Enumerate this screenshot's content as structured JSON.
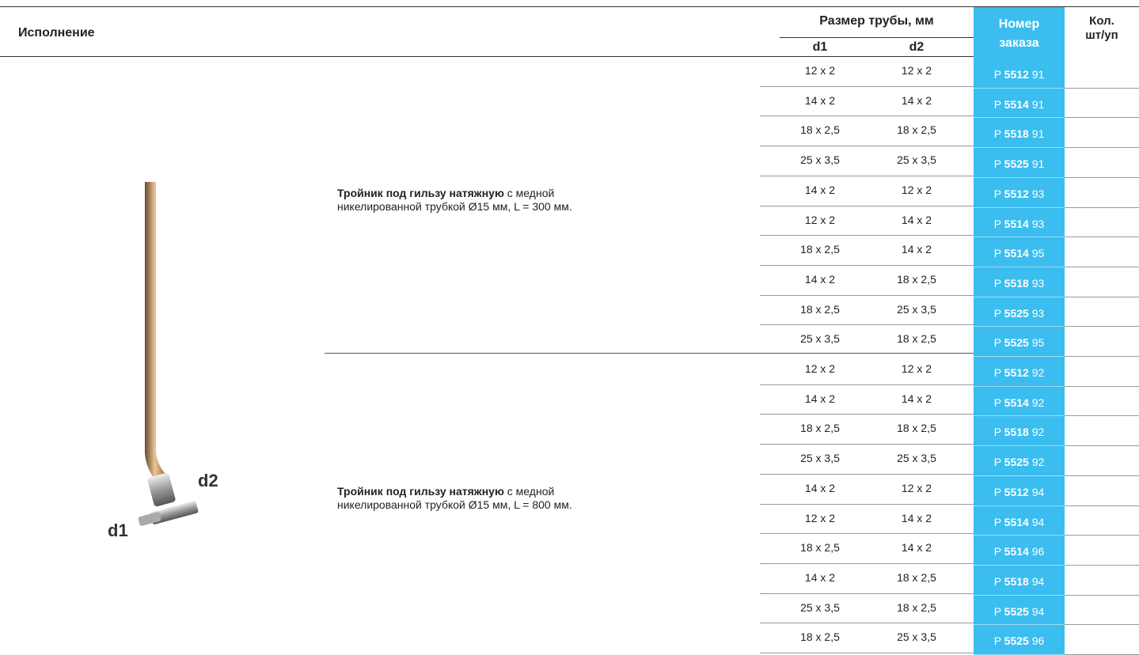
{
  "header": {
    "col_execution": "Исполнение",
    "col_size": "Размер трубы, мм",
    "col_d1": "d1",
    "col_d2": "d2",
    "col_order": [
      "Номер",
      "заказа"
    ],
    "col_qty": [
      "Кол.",
      "шт/уп"
    ]
  },
  "image": {
    "label_d1": "d1",
    "label_d2": "d2"
  },
  "groups": [
    {
      "title": "Тройник под гильзу натяжную",
      "text_line1": " с медной",
      "text_line2": "никелированной трубкой Ø15 мм, L = 300 мм.",
      "rows": [
        {
          "d1": "12 x 2",
          "d2": "12 x 2",
          "prefix": "P",
          "code": "5512",
          "suffix": "91"
        },
        {
          "d1": "14 x 2",
          "d2": "14 x 2",
          "prefix": "P",
          "code": "5514",
          "suffix": "91"
        },
        {
          "d1": "18 x 2,5",
          "d2": "18 x 2,5",
          "prefix": "P",
          "code": "5518",
          "suffix": "91"
        },
        {
          "d1": "25 x 3,5",
          "d2": "25 x 3,5",
          "prefix": "P",
          "code": "5525",
          "suffix": "91"
        },
        {
          "d1": "14 x 2",
          "d2": "12 x 2",
          "prefix": "P",
          "code": "5512",
          "suffix": "93"
        },
        {
          "d1": "12 x 2",
          "d2": "14 x 2",
          "prefix": "P",
          "code": "5514",
          "suffix": "93"
        },
        {
          "d1": "18 x 2,5",
          "d2": "14 x 2",
          "prefix": "P",
          "code": "5514",
          "suffix": "95"
        },
        {
          "d1": "14 x 2",
          "d2": "18 x 2,5",
          "prefix": "P",
          "code": "5518",
          "suffix": "93"
        },
        {
          "d1": "18 x 2,5",
          "d2": "25 x 3,5",
          "prefix": "P",
          "code": "5525",
          "suffix": "93"
        },
        {
          "d1": "25 x 3,5",
          "d2": "18 x 2,5",
          "prefix": "P",
          "code": "5525",
          "suffix": "95"
        }
      ]
    },
    {
      "title": "Тройник под гильзу натяжную",
      "text_line1": " с медной",
      "text_line2": "никелированной трубкой Ø15 мм, L = 800 мм.",
      "rows": [
        {
          "d1": "12 x 2",
          "d2": "12 x 2",
          "prefix": "P",
          "code": "5512",
          "suffix": "92"
        },
        {
          "d1": "14 x 2",
          "d2": "14 x 2",
          "prefix": "P",
          "code": "5514",
          "suffix": "92"
        },
        {
          "d1": "18 x 2,5",
          "d2": "18 x 2,5",
          "prefix": "P",
          "code": "5518",
          "suffix": "92"
        },
        {
          "d1": "25 x 3,5",
          "d2": "25 x 3,5",
          "prefix": "P",
          "code": "5525",
          "suffix": "92"
        },
        {
          "d1": "14 x 2",
          "d2": "12 x 2",
          "prefix": "P",
          "code": "5512",
          "suffix": "94"
        },
        {
          "d1": "12 x 2",
          "d2": "14 x 2",
          "prefix": "P",
          "code": "5514",
          "suffix": "94"
        },
        {
          "d1": "18 x 2,5",
          "d2": "14 x 2",
          "prefix": "P",
          "code": "5514",
          "suffix": "96"
        },
        {
          "d1": "14 x 2",
          "d2": "18 x 2,5",
          "prefix": "P",
          "code": "5518",
          "suffix": "94"
        },
        {
          "d1": "25 x 3,5",
          "d2": "18 x 2,5",
          "prefix": "P",
          "code": "5525",
          "suffix": "94"
        },
        {
          "d1": "18 x 2,5",
          "d2": "25 x 3,5",
          "prefix": "P",
          "code": "5525",
          "suffix": "96"
        }
      ]
    }
  ]
}
